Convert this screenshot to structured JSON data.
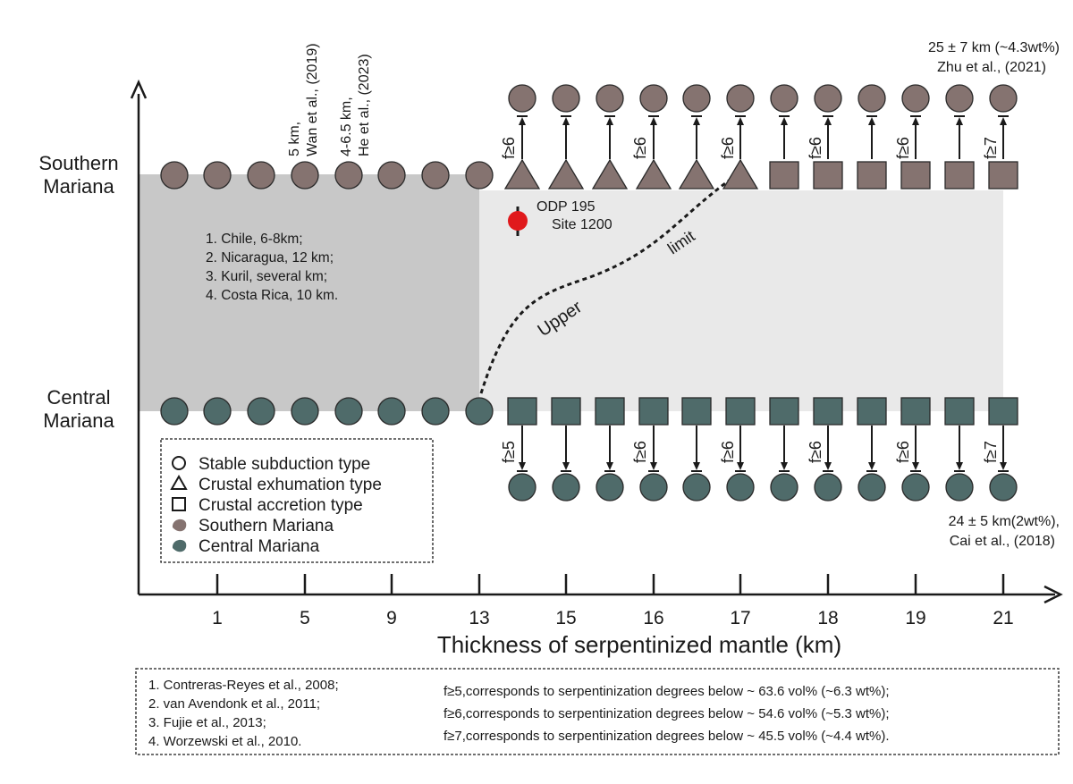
{
  "y_labels": {
    "southern_1": "Southern",
    "southern_2": "Mariana",
    "central_1": "Central",
    "central_2": "Mariana"
  },
  "x_axis": {
    "title": "Thickness of serpentinized mantle (km)",
    "ticks": [
      "1",
      "5",
      "9",
      "13",
      "15",
      "16",
      "17",
      "18",
      "19",
      "21"
    ]
  },
  "top_refs": {
    "wan_1": "5 km,",
    "wan_2": "Wan et al., (2019)",
    "he_1": "4-6.5 km,",
    "he_2": "He et al., (2023)"
  },
  "zhu": {
    "line1": "25 ± 7 km (~4.3wt%)",
    "line2": "Zhu et al., (2021)"
  },
  "cai": {
    "line1": "24 ± 5 km(2wt%),",
    "line2": "Cai et al., (2018)"
  },
  "odp": {
    "line1": "ODP 195",
    "line2": "Site 1200"
  },
  "upper_limit": {
    "upper": "Upper",
    "limit": "limit"
  },
  "region_list": [
    "1. Chile, 6-8km;",
    "2. Nicaragua, 12 km;",
    "3. Kuril, several km;",
    "4. Costa Rica, 10 km."
  ],
  "legend": {
    "stable": "Stable subduction type",
    "exhumation": "Crustal exhumation type",
    "accretion": "Crustal accretion type",
    "southern": "Southern Mariana",
    "central": "Central Mariana"
  },
  "top_f_labels": [
    "f≥6",
    "f≥6",
    "f≥6",
    "f≥6",
    "f≥6",
    "f≥7"
  ],
  "bottom_f_labels": [
    "f≥5",
    "f≥6",
    "f≥6",
    "f≥6",
    "f≥6",
    "f≥7"
  ],
  "references": [
    "1. Contreras-Reyes et al., 2008;",
    "2. van Avendonk et al., 2011;",
    "3. Fujie et al., 2013;",
    "4.  Worzewski et al., 2010."
  ],
  "f_notes": [
    "f≥5,corresponds to serpentinization degrees below ~ 63.6 vol% (~6.3 wt%);",
    "f≥6,corresponds to serpentinization degrees below ~ 54.6 vol% (~5.3 wt%);",
    "f≥7,corresponds to serpentinization degrees below ~ 45.5 vol% (~4.4 wt%)."
  ],
  "colors": {
    "southern": "#857370",
    "central": "#4f6b6a",
    "odp": "#e0191c",
    "dark_band": "#c8c8c8",
    "light_band": "#e9e9e9"
  },
  "icons": {
    "stable": "circle-icon",
    "exhumation": "triangle-icon",
    "accretion": "square-icon",
    "southern": "southern-mariana-symbol-icon",
    "central": "central-mariana-symbol-icon"
  }
}
